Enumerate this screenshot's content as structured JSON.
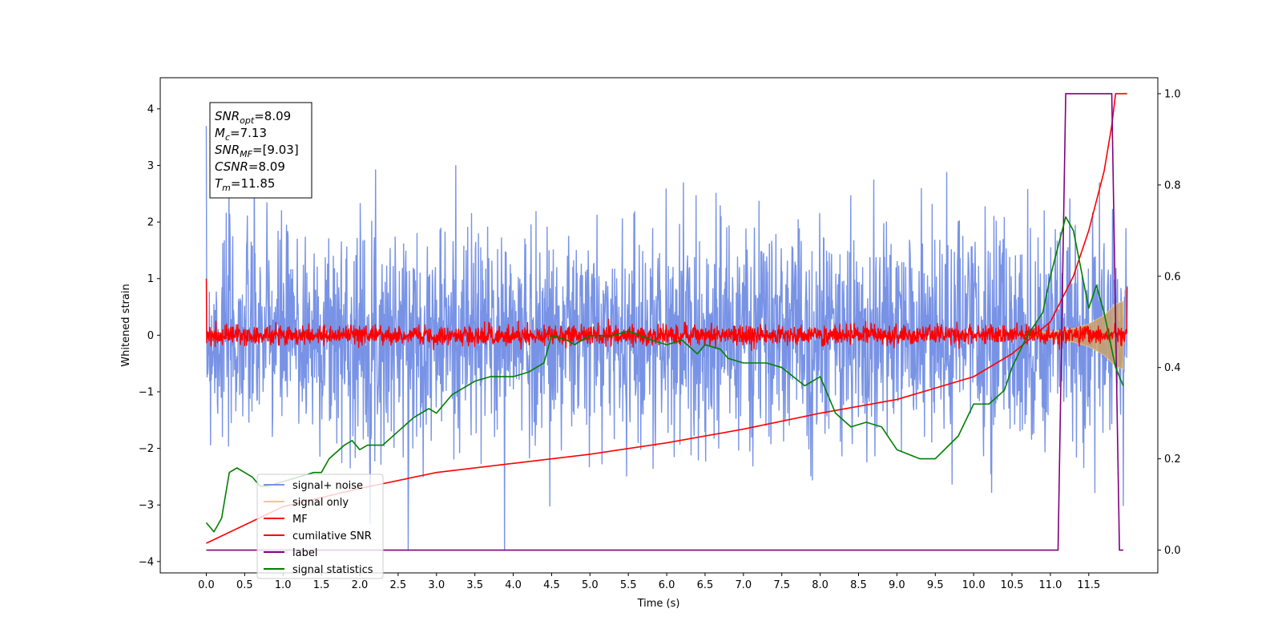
{
  "chart_data": {
    "type": "line",
    "xlabel": "Time (s)",
    "ylabel": "Whitened strain",
    "xlim": [
      -0.6,
      12.4
    ],
    "ylim": [
      -4.2,
      4.55
    ],
    "ylim_right": [
      -0.05,
      1.035
    ],
    "x_ticks": [
      "0.0",
      "0.5",
      "1.0",
      "1.5",
      "2.0",
      "2.5",
      "3.0",
      "3.5",
      "4.0",
      "4.5",
      "5.0",
      "5.5",
      "6.0",
      "6.5",
      "7.0",
      "7.5",
      "8.0",
      "8.5",
      "9.0",
      "9.5",
      "10.0",
      "10.5",
      "11.0",
      "11.5"
    ],
    "y_ticks": [
      "4",
      "3",
      "2",
      "1",
      "0",
      "−1",
      "−2",
      "−3",
      "−4"
    ],
    "y_ticks_right": [
      "1.0",
      "0.8",
      "0.6",
      "0.4",
      "0.2",
      "0.0"
    ],
    "legend": {
      "position": "lower-left",
      "entries": [
        {
          "label": "signal+ noise",
          "color": "#7893e6"
        },
        {
          "label": "signal only",
          "color": "#f5c97a"
        },
        {
          "label": "MF",
          "color": "#ff0000"
        },
        {
          "label": "cumilative SNR",
          "color": "#ff0000"
        },
        {
          "label": "label",
          "color": "#800080"
        },
        {
          "label": "signal statistics",
          "color": "#008000"
        }
      ]
    },
    "annotation": [
      {
        "var": "SNR",
        "sub": "opt",
        "value": "=8.09"
      },
      {
        "var": "M",
        "sub": "c",
        "value": "=7.13"
      },
      {
        "var": "SNR",
        "sub": "MF",
        "value": "=[9.03]"
      },
      {
        "var": "CSNR",
        "sub": "",
        "value": "=8.09"
      },
      {
        "var": "T",
        "sub": "m",
        "value": "=11.85"
      }
    ],
    "series": [
      {
        "name": "signal+ noise",
        "axis": "left",
        "style": "noise-band",
        "x_range": [
          0.0,
          12.0
        ],
        "envelope": {
          "mean": 0.0,
          "typical_max": 2.2,
          "typical_min": -2.2,
          "peak_max": 4.15,
          "peak_min": -3.8
        }
      },
      {
        "name": "signal only",
        "axis": "left",
        "style": "chirp-fill",
        "x": [
          10.6,
          10.9,
          11.1,
          11.3,
          11.5,
          11.7,
          11.85,
          11.95
        ],
        "amplitude": [
          0.02,
          0.05,
          0.08,
          0.12,
          0.2,
          0.35,
          0.55,
          0.6
        ]
      },
      {
        "name": "MF",
        "axis": "left",
        "style": "noise-band",
        "x_range": [
          0.0,
          12.0
        ],
        "start_value": 1.0,
        "end_value": 0.85,
        "envelope": {
          "mean": 0.0,
          "typical_max": 0.15,
          "typical_min": -0.15,
          "peak_max": 0.4,
          "peak_min": -0.3
        }
      },
      {
        "name": "cumilative SNR",
        "axis": "right",
        "style": "line",
        "x": [
          0.0,
          1.0,
          2.0,
          3.0,
          4.0,
          5.0,
          6.0,
          7.0,
          8.0,
          9.0,
          10.0,
          10.5,
          11.0,
          11.3,
          11.5,
          11.7,
          11.8,
          11.85,
          12.0
        ],
        "y": [
          0.015,
          0.095,
          0.135,
          0.17,
          0.19,
          0.21,
          0.235,
          0.265,
          0.3,
          0.33,
          0.38,
          0.43,
          0.5,
          0.6,
          0.7,
          0.83,
          0.93,
          1.0,
          1.0
        ]
      },
      {
        "name": "label",
        "axis": "right",
        "style": "line",
        "x": [
          0.0,
          11.1,
          11.2,
          11.8,
          11.85,
          11.9,
          11.95
        ],
        "y": [
          0.0,
          0.0,
          1.0,
          1.0,
          0.5,
          0.0,
          0.0
        ]
      },
      {
        "name": "signal statistics",
        "axis": "right",
        "style": "line",
        "x": [
          0.0,
          0.1,
          0.2,
          0.3,
          0.4,
          0.5,
          0.6,
          0.7,
          0.8,
          1.0,
          1.2,
          1.4,
          1.5,
          1.6,
          1.8,
          1.9,
          2.0,
          2.1,
          2.3,
          2.5,
          2.7,
          2.9,
          3.0,
          3.1,
          3.2,
          3.5,
          3.7,
          3.9,
          4.0,
          4.2,
          4.4,
          4.5,
          4.7,
          4.8,
          5.0,
          5.3,
          5.5,
          5.8,
          6.0,
          6.2,
          6.4,
          6.5,
          6.7,
          6.8,
          7.0,
          7.3,
          7.5,
          7.8,
          8.0,
          8.2,
          8.4,
          8.6,
          8.8,
          9.0,
          9.3,
          9.5,
          9.8,
          10.0,
          10.2,
          10.4,
          10.5,
          10.7,
          10.9,
          11.0,
          11.2,
          11.3,
          11.5,
          11.6,
          11.7,
          11.85,
          11.95
        ],
        "y": [
          0.06,
          0.04,
          0.07,
          0.17,
          0.18,
          0.17,
          0.16,
          0.14,
          0.14,
          0.15,
          0.16,
          0.17,
          0.17,
          0.2,
          0.23,
          0.24,
          0.22,
          0.23,
          0.23,
          0.26,
          0.29,
          0.31,
          0.3,
          0.32,
          0.34,
          0.37,
          0.38,
          0.38,
          0.38,
          0.39,
          0.41,
          0.47,
          0.46,
          0.45,
          0.47,
          0.47,
          0.48,
          0.46,
          0.45,
          0.46,
          0.43,
          0.45,
          0.44,
          0.42,
          0.41,
          0.41,
          0.4,
          0.36,
          0.38,
          0.3,
          0.27,
          0.28,
          0.27,
          0.22,
          0.2,
          0.2,
          0.25,
          0.32,
          0.32,
          0.35,
          0.4,
          0.47,
          0.52,
          0.6,
          0.73,
          0.7,
          0.53,
          0.58,
          0.52,
          0.4,
          0.36
        ]
      }
    ]
  }
}
